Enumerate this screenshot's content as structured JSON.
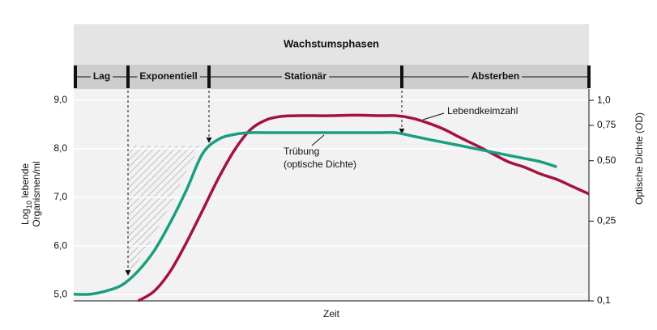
{
  "chart_data": {
    "type": "line",
    "header": "Wachstumsphasen",
    "phases": [
      "Lag",
      "Exponentiell",
      "Stationär",
      "Absterben"
    ],
    "xlabel": "Zeit",
    "ylabel": {
      "base": "Log",
      "sub": "10",
      "rest": " lebende",
      "line2": "Organismen/ml"
    },
    "y2label": "Optische Dichte (OD)",
    "categories": [
      null,
      null,
      null,
      null,
      null,
      null,
      null,
      null,
      null,
      null,
      null,
      null,
      null,
      null,
      null,
      null,
      null,
      null,
      null,
      null,
      null,
      null,
      null,
      null,
      null,
      null,
      null,
      null,
      null,
      null,
      null,
      null,
      null
    ],
    "series": [
      {
        "name": "Lebendkeimzahl",
        "color": "#a4123f",
        "axis": "y",
        "values": [
          null,
          null,
          null,
          null,
          4.87,
          5.07,
          5.48,
          6.07,
          6.73,
          7.4,
          7.98,
          8.4,
          8.6,
          8.67,
          8.68,
          8.68,
          8.68,
          8.69,
          8.69,
          8.68,
          8.68,
          8.63,
          8.53,
          8.4,
          8.23,
          8.07,
          7.9,
          7.73,
          7.62,
          7.48,
          7.37,
          7.22,
          7.07
        ]
      },
      {
        "name": [
          "Trübung",
          "(optische Dichte)"
        ],
        "color": "#1a9e80",
        "axis": "y2",
        "values": [
          0.108,
          0.108,
          0.112,
          0.12,
          0.141,
          0.178,
          0.246,
          0.357,
          0.542,
          0.64,
          0.677,
          0.69,
          0.69,
          0.69,
          0.69,
          0.69,
          0.69,
          0.69,
          0.69,
          0.69,
          0.69,
          0.665,
          0.64,
          0.617,
          0.595,
          0.573,
          0.552,
          0.532,
          0.513,
          0.494,
          0.466,
          null,
          null
        ]
      }
    ],
    "ylim": [
      4.87,
      9.23
    ],
    "yticks": [
      {
        "value": 5,
        "label": "5,0"
      },
      {
        "value": 6,
        "label": "6,0"
      },
      {
        "value": 7,
        "label": "7,0"
      },
      {
        "value": 8,
        "label": "8,0"
      },
      {
        "value": 9,
        "label": "9,0"
      }
    ],
    "y2lim": [
      0.1,
      1.14
    ],
    "y2log": true,
    "y2ticks": [
      {
        "value": 0.1,
        "label": "0,1"
      },
      {
        "value": 0.25,
        "label": "0,25"
      },
      {
        "value": 0.5,
        "label": "0,50"
      },
      {
        "value": 0.75,
        "label": "0,75"
      },
      {
        "value": 1,
        "label": "1,0"
      }
    ],
    "grid": true
  }
}
